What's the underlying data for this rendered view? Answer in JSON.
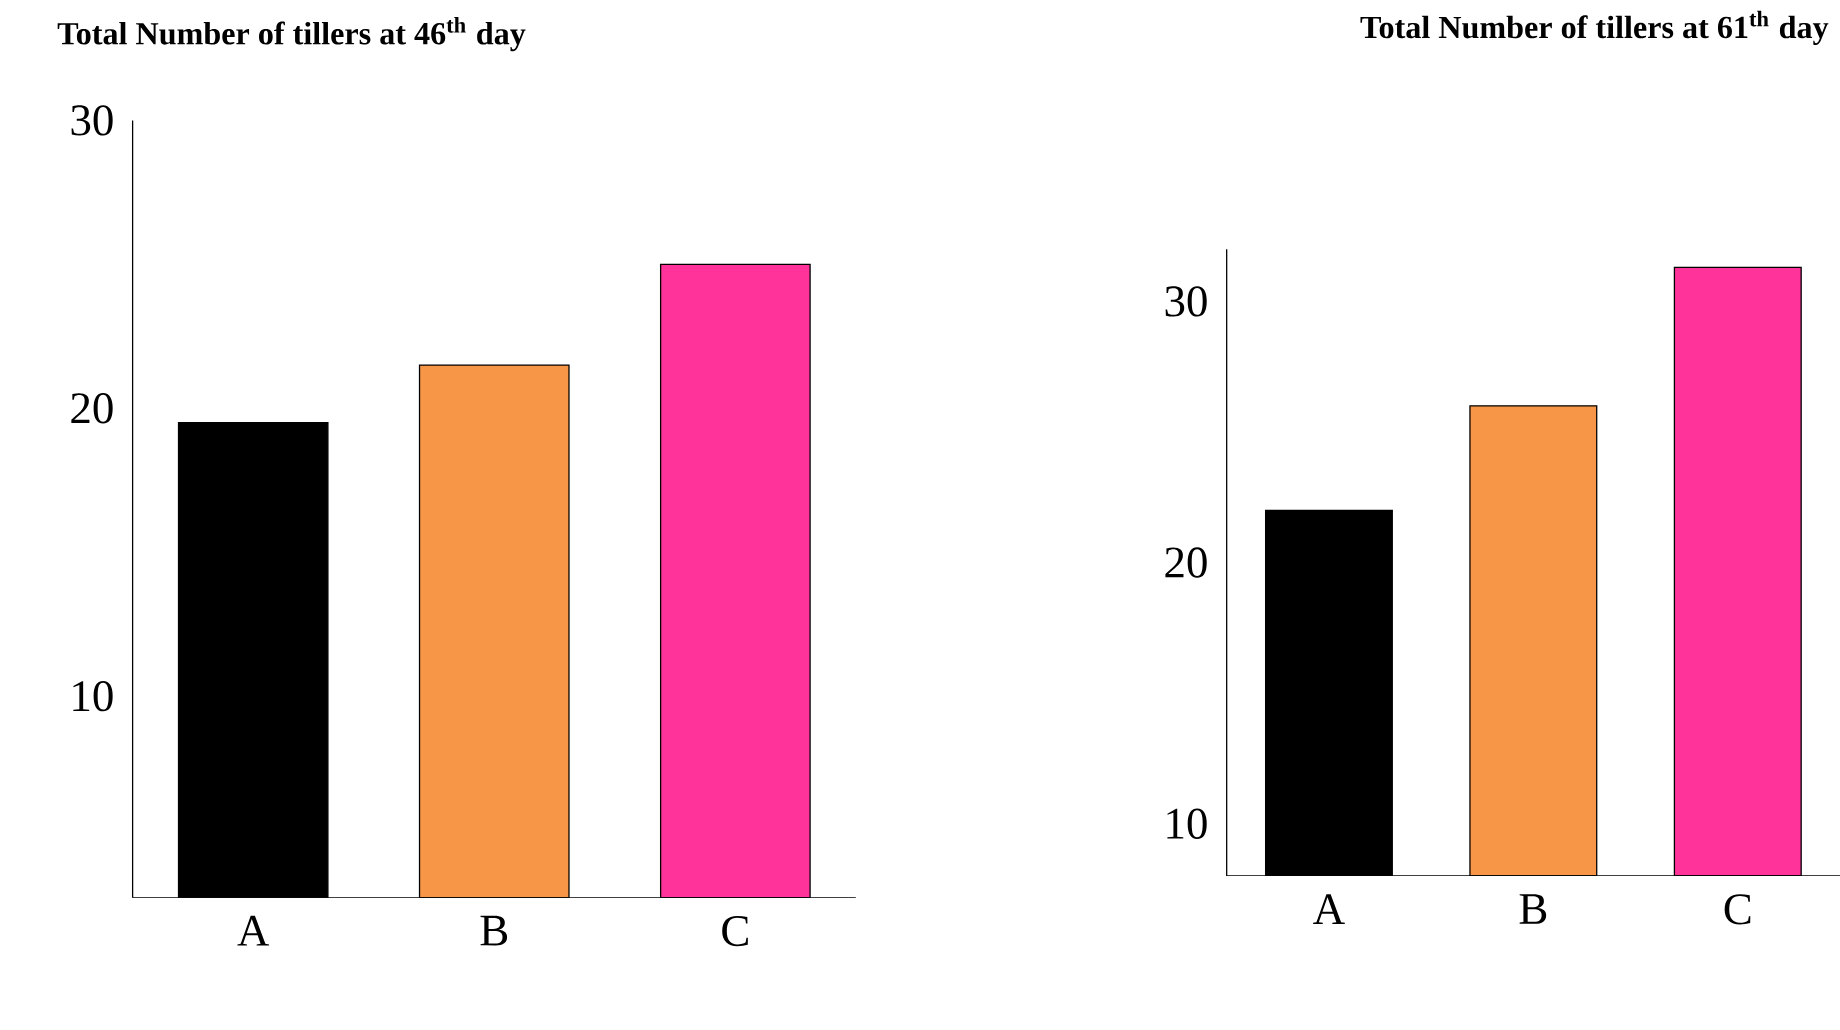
{
  "chart_data": [
    {
      "type": "bar",
      "title": "Total Number of tillers at 46$^{th}$ day",
      "categories": [
        "A",
        "B",
        "C"
      ],
      "values": [
        19.5,
        21.5,
        25
      ],
      "colors": [
        "#000000",
        "#f79646",
        "#ff3399"
      ],
      "ylim": [
        3,
        30
      ],
      "yticks": [
        10,
        20,
        30
      ]
    },
    {
      "type": "bar",
      "title": "Total Number of tillers  at 61$^{th}$ day",
      "categories": [
        "A",
        "B",
        "C"
      ],
      "values": [
        22,
        26,
        31.3
      ],
      "colors": [
        "#000000",
        "#f79646",
        "#ff3399"
      ],
      "ylim": [
        8,
        32
      ],
      "yticks": [
        10,
        20,
        30
      ]
    }
  ]
}
